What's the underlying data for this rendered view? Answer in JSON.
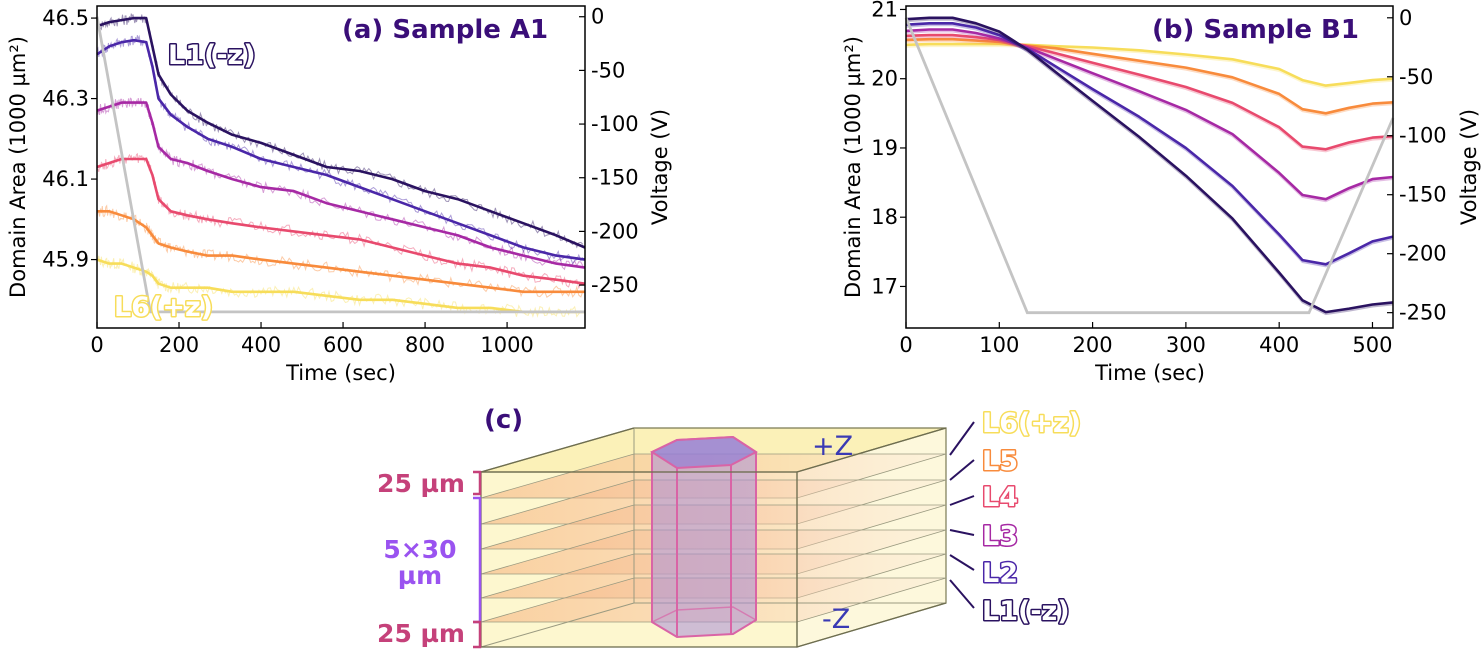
{
  "colors": {
    "L1": "#2a1260",
    "L2": "#4a27a8",
    "L3": "#a629a4",
    "L4": "#e84a6e",
    "L5": "#f88b3c",
    "L6": "#f7dd5a",
    "voltage": "#c4c4c4",
    "title": "#3a0e78",
    "dim25": "#c5417a",
    "dim5x30": "#9a53f0"
  },
  "chart_data": [
    {
      "id": "a",
      "type": "line",
      "title": "(a) Sample A1",
      "xlabel": "Time (sec)",
      "ylabel": "Domain Area (1000 µm²)",
      "y2label": "Voltage (V)",
      "xlim": [
        0,
        1190
      ],
      "ylim": [
        45.73,
        46.53
      ],
      "y2lim": [
        -290,
        10
      ],
      "xticks": [
        "0",
        "200",
        "400",
        "600",
        "800",
        "1000"
      ],
      "xtick_values": [
        0,
        200,
        400,
        600,
        800,
        1000
      ],
      "yticks": [
        "45.9",
        "46.1",
        "46.3",
        "46.5"
      ],
      "ytick_values": [
        45.9,
        46.1,
        46.3,
        46.5
      ],
      "y2ticks": [
        "0",
        "-50",
        "-100",
        "-150",
        "-200",
        "-250"
      ],
      "y2tick_values": [
        0,
        -50,
        -100,
        -150,
        -200,
        -250
      ],
      "annotations": [
        {
          "text": "L1(-z)",
          "layer": "L1"
        },
        {
          "text": "L6(+z)",
          "layer": "L6"
        }
      ],
      "voltage": {
        "x": [
          0,
          130,
          1190
        ],
        "y": [
          0,
          -275,
          -275
        ]
      },
      "x": [
        0,
        30,
        60,
        90,
        120,
        135,
        150,
        180,
        220,
        270,
        330,
        400,
        480,
        560,
        640,
        720,
        800,
        880,
        960,
        1040,
        1120,
        1190
      ],
      "series": [
        {
          "name": "L1(-z)",
          "layer": "L1",
          "values": [
            46.48,
            46.49,
            46.495,
            46.5,
            46.5,
            46.43,
            46.36,
            46.31,
            46.27,
            46.24,
            46.21,
            46.19,
            46.16,
            46.13,
            46.12,
            46.1,
            46.07,
            46.05,
            46.02,
            45.99,
            45.96,
            45.93
          ]
        },
        {
          "name": "L2",
          "layer": "L2",
          "values": [
            46.41,
            46.43,
            46.44,
            46.445,
            46.44,
            46.38,
            46.3,
            46.26,
            46.23,
            46.2,
            46.18,
            46.15,
            46.13,
            46.11,
            46.08,
            46.05,
            46.02,
            45.99,
            45.96,
            45.93,
            45.91,
            45.9
          ]
        },
        {
          "name": "L3",
          "layer": "L3",
          "values": [
            46.27,
            46.28,
            46.29,
            46.29,
            46.29,
            46.24,
            46.18,
            46.15,
            46.14,
            46.12,
            46.1,
            46.08,
            46.07,
            46.04,
            46.02,
            46.0,
            45.98,
            45.96,
            45.93,
            45.91,
            45.89,
            45.88
          ]
        },
        {
          "name": "L4",
          "layer": "L4",
          "values": [
            46.13,
            46.14,
            46.15,
            46.15,
            46.15,
            46.11,
            46.05,
            46.02,
            46.01,
            46.0,
            45.99,
            45.98,
            45.97,
            45.96,
            45.95,
            45.93,
            45.91,
            45.89,
            45.88,
            45.86,
            45.85,
            45.84
          ]
        },
        {
          "name": "L5",
          "layer": "L5",
          "values": [
            46.02,
            46.02,
            46.01,
            46.0,
            45.98,
            45.96,
            45.94,
            45.93,
            45.92,
            45.91,
            45.91,
            45.9,
            45.89,
            45.88,
            45.87,
            45.86,
            45.85,
            45.84,
            45.83,
            45.82,
            45.82,
            45.82
          ]
        },
        {
          "name": "L6(+z)",
          "layer": "L6",
          "values": [
            45.9,
            45.89,
            45.89,
            45.88,
            45.87,
            45.86,
            45.84,
            45.83,
            45.83,
            45.83,
            45.82,
            45.82,
            45.82,
            45.81,
            45.8,
            45.8,
            45.79,
            45.78,
            45.78,
            45.77,
            45.77,
            45.77
          ]
        }
      ]
    },
    {
      "id": "b",
      "type": "line",
      "title": "(b) Sample B1",
      "xlabel": "Time (sec)",
      "ylabel": "Domain Area (1000 µm²)",
      "y2label": "Voltage (V)",
      "xlim": [
        0,
        522
      ],
      "ylim": [
        16.4,
        21.05
      ],
      "y2lim": [
        -263,
        10
      ],
      "xticks": [
        "0",
        "100",
        "200",
        "300",
        "400",
        "500"
      ],
      "xtick_values": [
        0,
        100,
        200,
        300,
        400,
        500
      ],
      "yticks": [
        "17",
        "18",
        "19",
        "20",
        "21"
      ],
      "ytick_values": [
        17,
        18,
        19,
        20,
        21
      ],
      "y2ticks": [
        "0",
        "-50",
        "-100",
        "-150",
        "-200",
        "-250"
      ],
      "y2tick_values": [
        0,
        -50,
        -100,
        -150,
        -200,
        -250
      ],
      "voltage": {
        "x": [
          0,
          130,
          432,
          522
        ],
        "y": [
          0,
          -250,
          -250,
          -85
        ]
      },
      "x": [
        0,
        25,
        50,
        75,
        100,
        130,
        160,
        200,
        250,
        300,
        350,
        400,
        425,
        450,
        475,
        500,
        522
      ],
      "series": [
        {
          "name": "L1(-z)",
          "layer": "L1",
          "values": [
            20.86,
            20.88,
            20.88,
            20.8,
            20.68,
            20.42,
            20.1,
            19.68,
            19.16,
            18.6,
            17.98,
            17.2,
            16.8,
            16.63,
            16.68,
            16.74,
            16.77
          ]
        },
        {
          "name": "L2",
          "layer": "L2",
          "values": [
            20.78,
            20.8,
            20.8,
            20.74,
            20.63,
            20.43,
            20.18,
            19.85,
            19.45,
            19.0,
            18.45,
            17.75,
            17.38,
            17.32,
            17.48,
            17.65,
            17.72
          ]
        },
        {
          "name": "L3",
          "layer": "L3",
          "values": [
            20.69,
            20.71,
            20.71,
            20.66,
            20.58,
            20.45,
            20.29,
            20.08,
            19.82,
            19.55,
            19.2,
            18.64,
            18.32,
            18.26,
            18.42,
            18.55,
            18.58
          ]
        },
        {
          "name": "L4",
          "layer": "L4",
          "values": [
            20.62,
            20.63,
            20.63,
            20.6,
            20.56,
            20.47,
            20.37,
            20.23,
            20.06,
            19.88,
            19.65,
            19.3,
            19.02,
            18.98,
            19.08,
            19.15,
            19.17
          ]
        },
        {
          "name": "L5",
          "layer": "L5",
          "values": [
            20.56,
            20.57,
            20.57,
            20.55,
            20.53,
            20.48,
            20.44,
            20.36,
            20.26,
            20.16,
            20.02,
            19.78,
            19.56,
            19.5,
            19.58,
            19.64,
            19.66
          ]
        },
        {
          "name": "L6(+z)",
          "layer": "L6",
          "values": [
            20.49,
            20.5,
            20.5,
            20.5,
            20.5,
            20.49,
            20.47,
            20.45,
            20.41,
            20.35,
            20.28,
            20.14,
            19.98,
            19.9,
            19.94,
            19.98,
            20.0
          ]
        }
      ]
    }
  ],
  "diagram": {
    "title": "(c)",
    "top_label": "+Z",
    "bottom_label": "-Z",
    "dim_top": "25 µm",
    "dim_middle_line1": "5×30",
    "dim_middle_line2": "µm",
    "dim_bottom": "25 µm",
    "layers": [
      {
        "label": "L6(+z)",
        "layer": "L6"
      },
      {
        "label": "L5",
        "layer": "L5"
      },
      {
        "label": "L4",
        "layer": "L4"
      },
      {
        "label": "L3",
        "layer": "L3"
      },
      {
        "label": "L2",
        "layer": "L2"
      },
      {
        "label": "L1(-z)",
        "layer": "L1"
      }
    ]
  }
}
